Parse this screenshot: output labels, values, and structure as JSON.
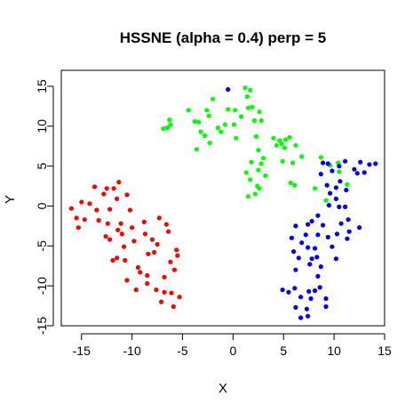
{
  "chart_data": {
    "type": "scatter",
    "title": "HSSNE (alpha = 0.4) perp = 5",
    "xlabel": "X",
    "ylabel": "Y",
    "xlim": [
      -17,
      15
    ],
    "ylim": [
      -15,
      17
    ],
    "xticks": [
      -15,
      -10,
      -5,
      0,
      5,
      10,
      15
    ],
    "yticks": [
      -15,
      -10,
      -5,
      0,
      5,
      10,
      15
    ],
    "xtick_labels": [
      "-15",
      "-10",
      "-5",
      "0",
      "5",
      "10",
      "15"
    ],
    "ytick_labels": [
      "-15",
      "-10",
      "-5",
      "0",
      "5",
      "10",
      "15"
    ],
    "grid": false,
    "series": [
      {
        "color": "#ff0000",
        "points": [
          [
            -16,
            -0.3
          ],
          [
            -15.5,
            -1.5
          ],
          [
            -15.3,
            -2.7
          ],
          [
            -15,
            0.5
          ],
          [
            -14.7,
            -1.7
          ],
          [
            -14.2,
            0.3
          ],
          [
            -13.7,
            2.4
          ],
          [
            -13.5,
            -0.5
          ],
          [
            -13.3,
            -1.8
          ],
          [
            -12.8,
            1.5
          ],
          [
            -12.5,
            2.2
          ],
          [
            -12.2,
            -0.4
          ],
          [
            -12.6,
            -3.8
          ],
          [
            -12.4,
            -2.2
          ],
          [
            -12.2,
            -4.2
          ],
          [
            -11.8,
            2.2
          ],
          [
            -11.5,
            0.9
          ],
          [
            -11.3,
            3
          ],
          [
            -11.5,
            -6.5
          ],
          [
            -11.9,
            -6.8
          ],
          [
            -11.4,
            -3
          ],
          [
            -11.1,
            -2.2
          ],
          [
            -11,
            -3.5
          ],
          [
            -10.8,
            -5.1
          ],
          [
            -10.5,
            1.4
          ],
          [
            -10.7,
            -6.8
          ],
          [
            -10.2,
            -0.5
          ],
          [
            -10,
            -2.7
          ],
          [
            -10.5,
            -9.3
          ],
          [
            -9.8,
            -4.4
          ],
          [
            -9.4,
            -7.7
          ],
          [
            -9.6,
            -10.5
          ],
          [
            -9.2,
            -8.3
          ],
          [
            -8.8,
            -2
          ],
          [
            -8.7,
            -3.5
          ],
          [
            -8.5,
            -8.7
          ],
          [
            -8.4,
            -6
          ],
          [
            -8.5,
            -9.7
          ],
          [
            -8,
            -4.2
          ],
          [
            -7.8,
            -5.8
          ],
          [
            -7.6,
            -10.5
          ],
          [
            -7.5,
            -4.8
          ],
          [
            -7.3,
            -1.5
          ],
          [
            -7.1,
            -12
          ],
          [
            -6.8,
            -8.9
          ],
          [
            -6.6,
            -2.3
          ],
          [
            -6.4,
            -3.2
          ],
          [
            -6.2,
            -7
          ],
          [
            -6.1,
            -10.9
          ],
          [
            -5.9,
            -12.6
          ],
          [
            -5.8,
            -8
          ],
          [
            -5.5,
            -6.2
          ],
          [
            -5.6,
            -5.5
          ],
          [
            -5.3,
            -11.4
          ],
          [
            -6.8,
            -10.8
          ]
        ]
      },
      {
        "color": "#00ff00",
        "points": [
          [
            -6.9,
            9.7
          ],
          [
            -6.5,
            9.8
          ],
          [
            -6.2,
            10.2
          ],
          [
            -6.3,
            10.8
          ],
          [
            -4.4,
            12
          ],
          [
            -3.8,
            10.6
          ],
          [
            -3.6,
            7.1
          ],
          [
            -3.2,
            9.3
          ],
          [
            -3.4,
            10.5
          ],
          [
            -2.8,
            8.8
          ],
          [
            -2.6,
            12
          ],
          [
            -2.4,
            11.3
          ],
          [
            -2.3,
            7.9
          ],
          [
            -2,
            13.4
          ],
          [
            -1.5,
            9.8
          ],
          [
            -1.2,
            9.3
          ],
          [
            -0.8,
            10.2
          ],
          [
            -0.5,
            12.1
          ],
          [
            0.2,
            12
          ],
          [
            0.1,
            10.2
          ],
          [
            0.3,
            8.5
          ],
          [
            0.8,
            11.2
          ],
          [
            1.2,
            14.8
          ],
          [
            1.5,
            12.3
          ],
          [
            1.4,
            13.7
          ],
          [
            1.7,
            14.5
          ],
          [
            1.9,
            12.4
          ],
          [
            2.1,
            10.7
          ],
          [
            2.3,
            8.7
          ],
          [
            2.6,
            11.8
          ],
          [
            2.8,
            10.7
          ],
          [
            2.5,
            7
          ],
          [
            3,
            6
          ],
          [
            1.8,
            5.5
          ],
          [
            2.5,
            4.5
          ],
          [
            2.8,
            5.3
          ],
          [
            1.3,
            4.2
          ],
          [
            3.2,
            3.8
          ],
          [
            1.7,
            3.3
          ],
          [
            2.4,
            2.5
          ],
          [
            1.5,
            1.2
          ],
          [
            2.2,
            1.5
          ],
          [
            2.6,
            2.2
          ],
          [
            4,
            8.5
          ],
          [
            4.6,
            8.2
          ],
          [
            4.3,
            7.6
          ],
          [
            5.2,
            8.3
          ],
          [
            5.6,
            8.6
          ],
          [
            5.1,
            7.3
          ],
          [
            6.2,
            7.6
          ],
          [
            4.9,
            5.6
          ],
          [
            5.9,
            5.4
          ],
          [
            6.8,
            6.2
          ],
          [
            5.7,
            2.9
          ],
          [
            6.1,
            2.6
          ],
          [
            8.1,
            2.2
          ],
          [
            8.7,
            6.1
          ],
          [
            9.6,
            5.1
          ],
          [
            10.5,
            4.3
          ],
          [
            11.3,
            2.7
          ],
          [
            10.4,
            5.4
          ],
          [
            9.2,
            0.7
          ],
          [
            4.8,
            7.8
          ]
        ]
      },
      {
        "color": "#0000ff",
        "points": [
          [
            -0.5,
            14.6
          ],
          [
            8.9,
            5.4
          ],
          [
            8.7,
            4
          ],
          [
            9.3,
            2.6
          ],
          [
            9.6,
            1.6
          ],
          [
            10.2,
            2.3
          ],
          [
            10.6,
            3.1
          ],
          [
            11.2,
            2
          ],
          [
            12,
            4.6
          ],
          [
            12.6,
            5.5
          ],
          [
            12.3,
            4.1
          ],
          [
            13,
            4.2
          ],
          [
            13.5,
            5.2
          ],
          [
            14.1,
            5.3
          ],
          [
            11.1,
            5.6
          ],
          [
            10.5,
            5
          ],
          [
            9.8,
            4.4
          ],
          [
            9.4,
            5.3
          ],
          [
            9.5,
            0.1
          ],
          [
            10.2,
            0.9
          ],
          [
            10.5,
            -0.1
          ],
          [
            11.1,
            -0.1
          ],
          [
            11.4,
            -1.7
          ],
          [
            11.5,
            -3.2
          ],
          [
            11.3,
            -4.1
          ],
          [
            12.5,
            -2.7
          ],
          [
            10.7,
            -2.2
          ],
          [
            10.3,
            -3.5
          ],
          [
            9.8,
            -5.1
          ],
          [
            10.2,
            -6.6
          ],
          [
            9.4,
            -3.9
          ],
          [
            8.9,
            -2.4
          ],
          [
            8.4,
            -1.2
          ],
          [
            8.4,
            -3.6
          ],
          [
            7.8,
            -1.9
          ],
          [
            7.4,
            -2.3
          ],
          [
            7.2,
            -3.6
          ],
          [
            7.4,
            -5.2
          ],
          [
            6.8,
            -4.6
          ],
          [
            6.5,
            -6.5
          ],
          [
            6,
            -5.7
          ],
          [
            5.8,
            -4
          ],
          [
            6.2,
            -2.5
          ],
          [
            6.2,
            -8
          ],
          [
            5.5,
            -10.8
          ],
          [
            4.9,
            -10.5
          ],
          [
            6.1,
            -10.3
          ],
          [
            6.7,
            -11.4
          ],
          [
            6.2,
            -12.7
          ],
          [
            6.7,
            -14
          ],
          [
            7.4,
            -13.8
          ],
          [
            7.3,
            -12.9
          ],
          [
            7.7,
            -11.6
          ],
          [
            7.5,
            -10.7
          ],
          [
            8.1,
            -10.6
          ],
          [
            8.6,
            -10.2
          ],
          [
            8.4,
            -8.8
          ],
          [
            8.7,
            -7.6
          ],
          [
            8.3,
            -6.4
          ],
          [
            8.1,
            -5.3
          ],
          [
            7.8,
            -6.6
          ],
          [
            9.2,
            -11.6
          ],
          [
            9.2,
            -12.6
          ],
          [
            7.6,
            -7.3
          ]
        ]
      }
    ]
  }
}
